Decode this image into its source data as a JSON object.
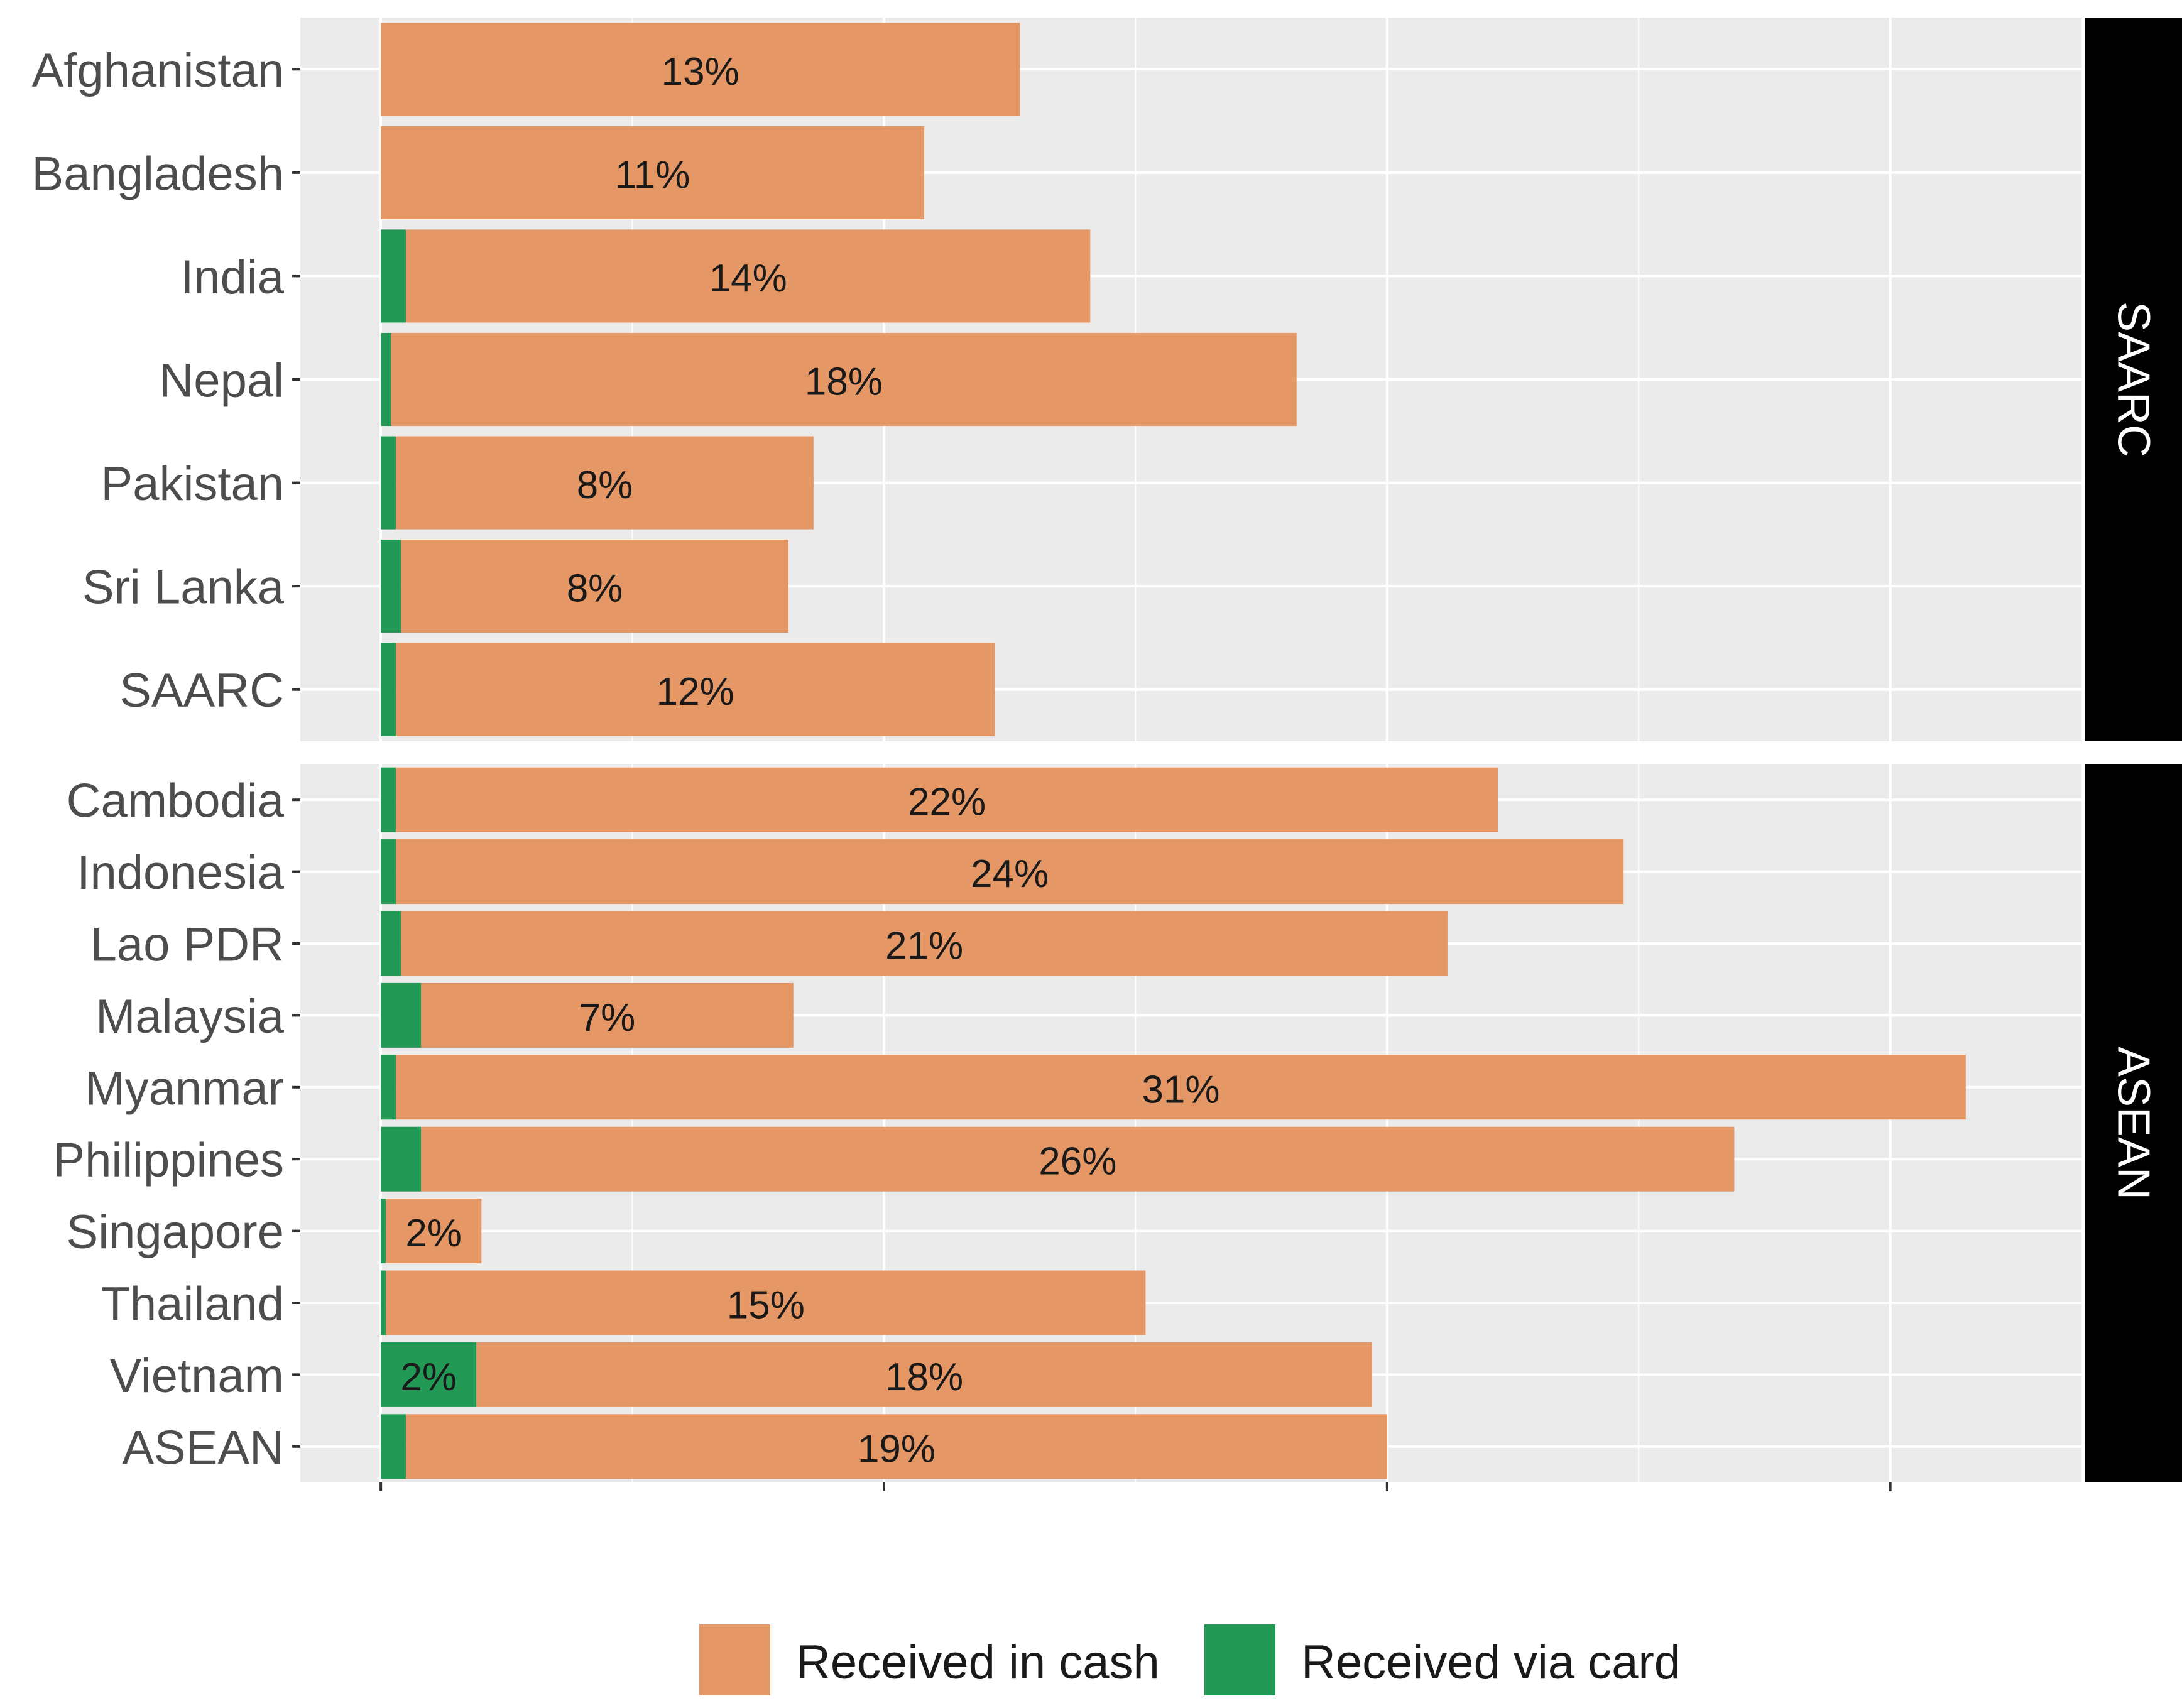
{
  "chart_data": {
    "type": "bar",
    "orientation": "horizontal",
    "stacked": true,
    "title": "",
    "xlabel": "",
    "ylabel": "",
    "x_tick_labels_shown": false,
    "grid": true,
    "legend_position": "bottom",
    "series": [
      {
        "name": "Received in cash",
        "key": "cash",
        "color": "#E59866"
      },
      {
        "name": "Received via card",
        "key": "card",
        "color": "#229954"
      }
    ],
    "panels": [
      {
        "strip": "SAARC",
        "rows": [
          {
            "category": "Afghanistan",
            "cash": 12.7,
            "card": 0,
            "cash_label": "13%",
            "card_label": ""
          },
          {
            "category": "Bangladesh",
            "cash": 10.8,
            "card": 0,
            "cash_label": "11%",
            "card_label": ""
          },
          {
            "category": "India",
            "cash": 13.6,
            "card": 0.5,
            "cash_label": "14%",
            "card_label": ""
          },
          {
            "category": "Nepal",
            "cash": 18.0,
            "card": 0.2,
            "cash_label": "18%",
            "card_label": ""
          },
          {
            "category": "Pakistan",
            "cash": 8.3,
            "card": 0.3,
            "cash_label": "8%",
            "card_label": ""
          },
          {
            "category": "Sri Lanka",
            "cash": 7.7,
            "card": 0.4,
            "cash_label": "8%",
            "card_label": ""
          },
          {
            "category": "SAARC",
            "cash": 11.9,
            "card": 0.3,
            "cash_label": "12%",
            "card_label": ""
          }
        ]
      },
      {
        "strip": "ASEAN",
        "rows": [
          {
            "category": "Cambodia",
            "cash": 21.9,
            "card": 0.3,
            "cash_label": "22%",
            "card_label": ""
          },
          {
            "category": "Indonesia",
            "cash": 24.4,
            "card": 0.3,
            "cash_label": "24%",
            "card_label": ""
          },
          {
            "category": "Lao PDR",
            "cash": 20.8,
            "card": 0.4,
            "cash_label": "21%",
            "card_label": ""
          },
          {
            "category": "Malaysia",
            "cash": 7.4,
            "card": 0.8,
            "cash_label": "7%",
            "card_label": ""
          },
          {
            "category": "Myanmar",
            "cash": 31.2,
            "card": 0.3,
            "cash_label": "31%",
            "card_label": ""
          },
          {
            "category": "Philippines",
            "cash": 26.1,
            "card": 0.8,
            "cash_label": "26%",
            "card_label": ""
          },
          {
            "category": "Singapore",
            "cash": 1.9,
            "card": 0.1,
            "cash_label": "2%",
            "card_label": ""
          },
          {
            "category": "Thailand",
            "cash": 15.1,
            "card": 0.1,
            "cash_label": "15%",
            "card_label": ""
          },
          {
            "category": "Vietnam",
            "cash": 17.8,
            "card": 1.9,
            "cash_label": "18%",
            "card_label": "2%"
          },
          {
            "category": "ASEAN",
            "cash": 19.5,
            "card": 0.5,
            "cash_label": "19%",
            "card_label": ""
          }
        ]
      }
    ],
    "xlim": [
      -1.6,
      33.8
    ],
    "major_ticks": [
      0,
      10,
      20,
      30
    ],
    "minor_ticks": [
      5,
      15,
      25
    ]
  }
}
